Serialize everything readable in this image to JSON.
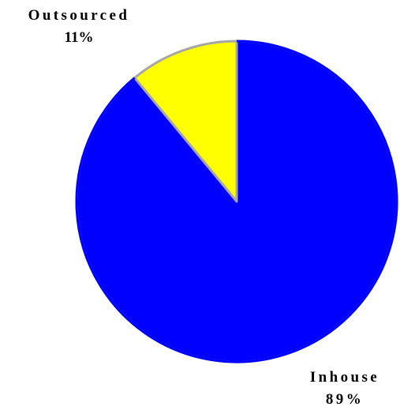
{
  "chart_data": {
    "type": "pie",
    "title": "",
    "slices": [
      {
        "label": "Inhouse",
        "value": 89,
        "value_label": "89%",
        "color": "#0000FF"
      },
      {
        "label": "Outsourced",
        "value": 11,
        "value_label": "11%",
        "color": "#FFFF00"
      }
    ],
    "start": "12 o'clock",
    "direction": "clockwise",
    "edge_color": "#A6A6A6",
    "legend": "none"
  }
}
